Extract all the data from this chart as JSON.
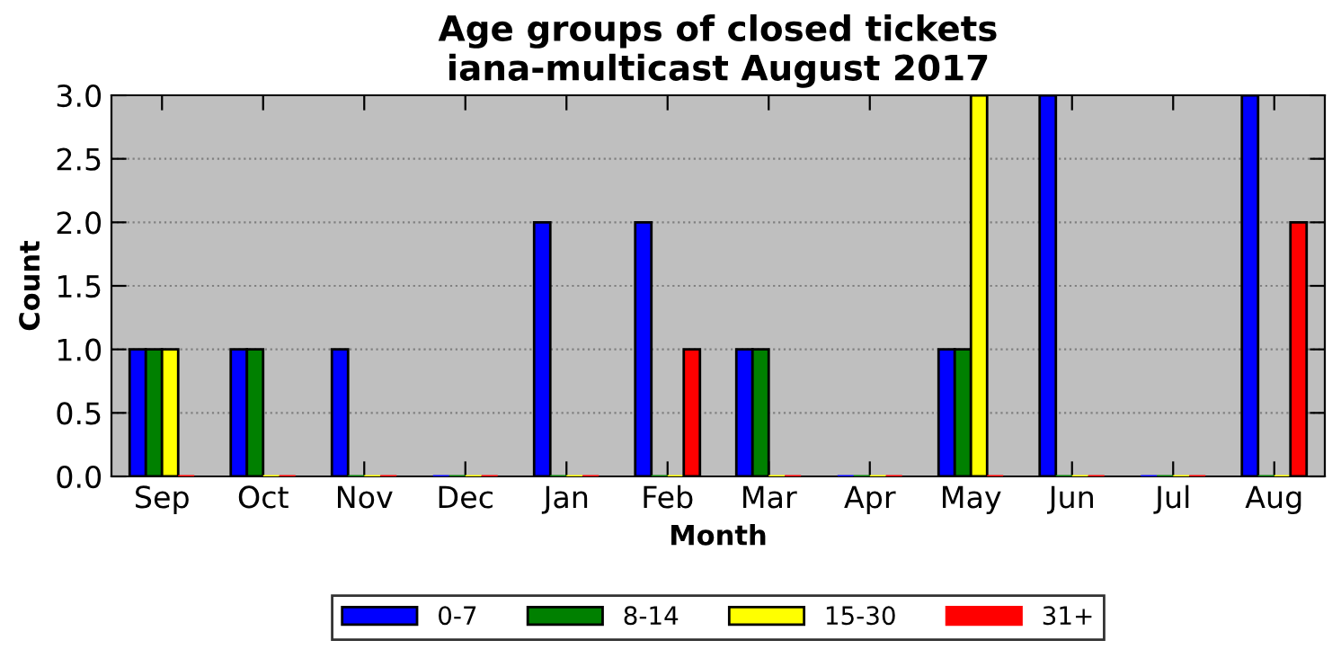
{
  "chart_data": {
    "type": "bar",
    "title": "Age groups of closed tickets\niana-multicast August 2017",
    "xlabel": "Month",
    "ylabel": "Count",
    "categories": [
      "Sep",
      "Oct",
      "Nov",
      "Dec",
      "Jan",
      "Feb",
      "Mar",
      "Apr",
      "May",
      "Jun",
      "Jul",
      "Aug"
    ],
    "series": [
      {
        "name": "0-7",
        "color": "#0000ff",
        "values": [
          1,
          1,
          1,
          0,
          2,
          2,
          1,
          0,
          1,
          3,
          0,
          3
        ]
      },
      {
        "name": "8-14",
        "color": "#008000",
        "values": [
          1,
          1,
          0,
          0,
          0,
          0,
          1,
          0,
          1,
          0,
          0,
          0
        ]
      },
      {
        "name": "15-30",
        "color": "#ffff00",
        "values": [
          1,
          0,
          0,
          0,
          0,
          0,
          0,
          0,
          3,
          0,
          0,
          0
        ]
      },
      {
        "name": "31+",
        "color": "#ff0000",
        "values": [
          0,
          0,
          0,
          0,
          0,
          1,
          0,
          0,
          0,
          0,
          0,
          2
        ]
      }
    ],
    "ylim": [
      0,
      3.0
    ],
    "yticks": [
      {
        "value": 0,
        "label": "0.0"
      },
      0.5,
      {
        "value": 1,
        "label": "1.0"
      },
      1.5,
      {
        "value": 2,
        "label": "2.0"
      },
      2.5,
      {
        "value": 3,
        "label": "3.0"
      }
    ],
    "grid": "y",
    "legend": "bottom"
  }
}
